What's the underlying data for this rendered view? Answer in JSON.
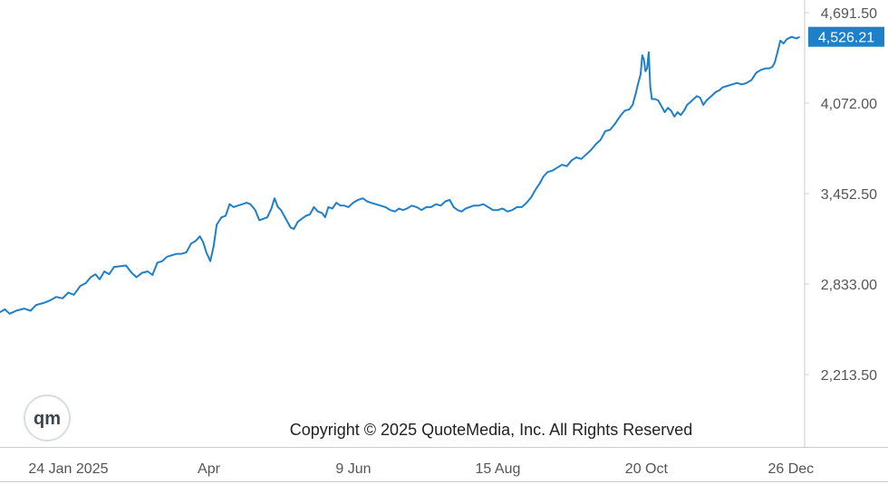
{
  "chart_data": {
    "type": "line",
    "title": "",
    "xlabel": "",
    "ylabel": "",
    "ylim": [
      1900,
      4780
    ],
    "y_ticks": [
      "4,691.50",
      "4,072.00",
      "3,452.50",
      "2,833.00",
      "2,213.50"
    ],
    "y_tick_values": [
      4691.5,
      4072.0,
      3452.5,
      2833.0,
      2213.5
    ],
    "x_ticks": [
      "24 Jan 2025",
      "Apr",
      "9 Jun",
      "15 Aug",
      "20 Oct",
      "26 Dec"
    ],
    "x_tick_positions": [
      0.075,
      0.25,
      0.43,
      0.61,
      0.795,
      0.975
    ],
    "last_value_label": "4,526.21",
    "copyright": "Copyright © 2025 QuoteMedia, Inc. All Rights Reserved",
    "logo": "qm",
    "colors": {
      "line": "#1f7fc9",
      "last_label_bg": "#1f7fc9",
      "axis": "#cccccc"
    },
    "grid": false,
    "series": [
      {
        "values": [
          [
            0.0,
            2640
          ],
          [
            0.006,
            2660
          ],
          [
            0.012,
            2630
          ],
          [
            0.02,
            2650
          ],
          [
            0.03,
            2665
          ],
          [
            0.038,
            2650
          ],
          [
            0.045,
            2690
          ],
          [
            0.055,
            2705
          ],
          [
            0.062,
            2720
          ],
          [
            0.07,
            2745
          ],
          [
            0.078,
            2735
          ],
          [
            0.085,
            2775
          ],
          [
            0.092,
            2760
          ],
          [
            0.1,
            2820
          ],
          [
            0.107,
            2840
          ],
          [
            0.113,
            2880
          ],
          [
            0.119,
            2900
          ],
          [
            0.124,
            2865
          ],
          [
            0.13,
            2920
          ],
          [
            0.136,
            2900
          ],
          [
            0.142,
            2950
          ],
          [
            0.15,
            2955
          ],
          [
            0.157,
            2960
          ],
          [
            0.164,
            2910
          ],
          [
            0.17,
            2880
          ],
          [
            0.177,
            2910
          ],
          [
            0.184,
            2920
          ],
          [
            0.19,
            2895
          ],
          [
            0.196,
            2980
          ],
          [
            0.202,
            2990
          ],
          [
            0.208,
            3020
          ],
          [
            0.214,
            3030
          ],
          [
            0.22,
            3040
          ],
          [
            0.226,
            3040
          ],
          [
            0.232,
            3050
          ],
          [
            0.238,
            3110
          ],
          [
            0.244,
            3130
          ],
          [
            0.249,
            3160
          ],
          [
            0.253,
            3120
          ],
          [
            0.257,
            3050
          ],
          [
            0.262,
            2990
          ],
          [
            0.266,
            3090
          ],
          [
            0.27,
            3240
          ],
          [
            0.276,
            3290
          ],
          [
            0.281,
            3300
          ],
          [
            0.286,
            3380
          ],
          [
            0.291,
            3360
          ],
          [
            0.296,
            3370
          ],
          [
            0.302,
            3380
          ],
          [
            0.307,
            3390
          ],
          [
            0.312,
            3380
          ],
          [
            0.318,
            3340
          ],
          [
            0.323,
            3270
          ],
          [
            0.328,
            3280
          ],
          [
            0.333,
            3290
          ],
          [
            0.338,
            3350
          ],
          [
            0.342,
            3420
          ],
          [
            0.346,
            3360
          ],
          [
            0.35,
            3340
          ],
          [
            0.354,
            3300
          ],
          [
            0.358,
            3260
          ],
          [
            0.362,
            3220
          ],
          [
            0.366,
            3210
          ],
          [
            0.371,
            3260
          ],
          [
            0.376,
            3280
          ],
          [
            0.381,
            3300
          ],
          [
            0.386,
            3310
          ],
          [
            0.391,
            3360
          ],
          [
            0.396,
            3330
          ],
          [
            0.401,
            3320
          ],
          [
            0.405,
            3290
          ],
          [
            0.409,
            3360
          ],
          [
            0.414,
            3350
          ],
          [
            0.419,
            3390
          ],
          [
            0.424,
            3370
          ],
          [
            0.429,
            3370
          ],
          [
            0.434,
            3360
          ],
          [
            0.44,
            3390
          ],
          [
            0.446,
            3410
          ],
          [
            0.452,
            3420
          ],
          [
            0.457,
            3400
          ],
          [
            0.462,
            3390
          ],
          [
            0.468,
            3380
          ],
          [
            0.474,
            3370
          ],
          [
            0.48,
            3360
          ],
          [
            0.486,
            3340
          ],
          [
            0.492,
            3330
          ],
          [
            0.497,
            3350
          ],
          [
            0.502,
            3340
          ],
          [
            0.507,
            3350
          ],
          [
            0.513,
            3370
          ],
          [
            0.519,
            3360
          ],
          [
            0.525,
            3340
          ],
          [
            0.531,
            3360
          ],
          [
            0.537,
            3360
          ],
          [
            0.543,
            3380
          ],
          [
            0.549,
            3370
          ],
          [
            0.555,
            3400
          ],
          [
            0.56,
            3410
          ],
          [
            0.565,
            3360
          ],
          [
            0.57,
            3340
          ],
          [
            0.575,
            3330
          ],
          [
            0.58,
            3350
          ],
          [
            0.585,
            3360
          ],
          [
            0.59,
            3370
          ],
          [
            0.596,
            3370
          ],
          [
            0.602,
            3380
          ],
          [
            0.608,
            3360
          ],
          [
            0.614,
            3340
          ],
          [
            0.62,
            3340
          ],
          [
            0.626,
            3350
          ],
          [
            0.632,
            3330
          ],
          [
            0.638,
            3340
          ],
          [
            0.644,
            3360
          ],
          [
            0.65,
            3360
          ],
          [
            0.656,
            3390
          ],
          [
            0.662,
            3430
          ],
          [
            0.667,
            3480
          ],
          [
            0.672,
            3520
          ],
          [
            0.677,
            3570
          ],
          [
            0.682,
            3600
          ],
          [
            0.688,
            3610
          ],
          [
            0.694,
            3630
          ],
          [
            0.7,
            3650
          ],
          [
            0.706,
            3640
          ],
          [
            0.712,
            3680
          ],
          [
            0.718,
            3700
          ],
          [
            0.724,
            3690
          ],
          [
            0.73,
            3720
          ],
          [
            0.736,
            3750
          ],
          [
            0.742,
            3790
          ],
          [
            0.748,
            3820
          ],
          [
            0.754,
            3880
          ],
          [
            0.76,
            3890
          ],
          [
            0.766,
            3930
          ],
          [
            0.772,
            3980
          ],
          [
            0.778,
            4020
          ],
          [
            0.784,
            4030
          ],
          [
            0.788,
            4060
          ],
          [
            0.792,
            4140
          ],
          [
            0.795,
            4210
          ],
          [
            0.798,
            4270
          ],
          [
            0.8,
            4400
          ],
          [
            0.802,
            4370
          ],
          [
            0.804,
            4290
          ],
          [
            0.806,
            4310
          ],
          [
            0.808,
            4420
          ],
          [
            0.81,
            4180
          ],
          [
            0.812,
            4100
          ],
          [
            0.816,
            4100
          ],
          [
            0.82,
            4090
          ],
          [
            0.824,
            4050
          ],
          [
            0.828,
            4010
          ],
          [
            0.832,
            4040
          ],
          [
            0.836,
            4020
          ],
          [
            0.84,
            3980
          ],
          [
            0.844,
            4010
          ],
          [
            0.848,
            3990
          ],
          [
            0.852,
            4020
          ],
          [
            0.856,
            4060
          ],
          [
            0.86,
            4080
          ],
          [
            0.864,
            4100
          ],
          [
            0.868,
            4120
          ],
          [
            0.872,
            4110
          ],
          [
            0.876,
            4060
          ],
          [
            0.88,
            4090
          ],
          [
            0.884,
            4110
          ],
          [
            0.888,
            4130
          ],
          [
            0.892,
            4150
          ],
          [
            0.896,
            4160
          ],
          [
            0.9,
            4180
          ],
          [
            0.906,
            4190
          ],
          [
            0.912,
            4200
          ],
          [
            0.918,
            4210
          ],
          [
            0.924,
            4200
          ],
          [
            0.93,
            4210
          ],
          [
            0.936,
            4230
          ],
          [
            0.942,
            4280
          ],
          [
            0.948,
            4300
          ],
          [
            0.954,
            4310
          ],
          [
            0.958,
            4310
          ],
          [
            0.962,
            4320
          ],
          [
            0.965,
            4350
          ],
          [
            0.968,
            4410
          ],
          [
            0.972,
            4500
          ],
          [
            0.976,
            4480
          ],
          [
            0.98,
            4510
          ],
          [
            0.986,
            4526.21
          ],
          [
            0.992,
            4515
          ],
          [
            0.996,
            4526.21
          ]
        ]
      }
    ]
  }
}
